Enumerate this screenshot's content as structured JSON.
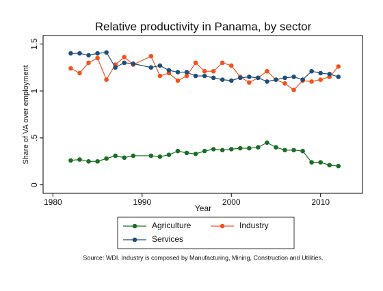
{
  "chart_data": {
    "type": "line",
    "title": "Relative productivity in Panama, by sector",
    "x_label": "Year",
    "y_label": "Share of VA over employment",
    "note": "Source: WDI. Industry is composed by Manufacturing, Mining, Construction and Utilities.",
    "x": [
      1982,
      1983,
      1984,
      1985,
      1986,
      1987,
      1988,
      1989,
      1991,
      1992,
      1993,
      1994,
      1995,
      1996,
      1997,
      1998,
      1999,
      2000,
      2001,
      2002,
      2003,
      2004,
      2005,
      2006,
      2007,
      2008,
      2009,
      2010,
      2011,
      2012
    ],
    "series": [
      {
        "name": "Agriculture",
        "color": "#1a6e24",
        "values": [
          0.26,
          0.27,
          0.25,
          0.25,
          0.28,
          0.31,
          0.29,
          0.31,
          0.31,
          0.3,
          0.32,
          0.36,
          0.34,
          0.33,
          0.36,
          0.38,
          0.37,
          0.38,
          0.39,
          0.39,
          0.4,
          0.45,
          0.4,
          0.37,
          0.37,
          0.36,
          0.24,
          0.24,
          0.21,
          0.2
        ]
      },
      {
        "name": "Industry",
        "color": "#f4511e",
        "values": [
          1.24,
          1.19,
          1.3,
          1.35,
          1.12,
          1.28,
          1.36,
          1.28,
          1.37,
          1.16,
          1.19,
          1.11,
          1.16,
          1.3,
          1.21,
          1.21,
          1.3,
          1.27,
          1.15,
          1.09,
          1.14,
          1.21,
          1.12,
          1.08,
          1.01,
          1.11,
          1.1,
          1.12,
          1.15,
          1.26
        ]
      },
      {
        "name": "Services",
        "color": "#1f4e79",
        "values": [
          1.4,
          1.4,
          1.38,
          1.4,
          1.41,
          1.25,
          1.3,
          1.29,
          1.25,
          1.27,
          1.22,
          1.2,
          1.2,
          1.16,
          1.16,
          1.14,
          1.12,
          1.11,
          1.14,
          1.15,
          1.14,
          1.1,
          1.12,
          1.14,
          1.15,
          1.12,
          1.21,
          1.19,
          1.18,
          1.15
        ]
      }
    ],
    "xlim": [
      1978.9,
      2014.7
    ],
    "ylim": [
      -0.09,
      1.59
    ],
    "xticks": [
      1980,
      1990,
      2000,
      2010
    ],
    "yticks": [
      0,
      {
        "value": 0.5,
        "label": ".5"
      },
      1,
      1.5
    ],
    "grid": false,
    "legend": "bottom"
  }
}
